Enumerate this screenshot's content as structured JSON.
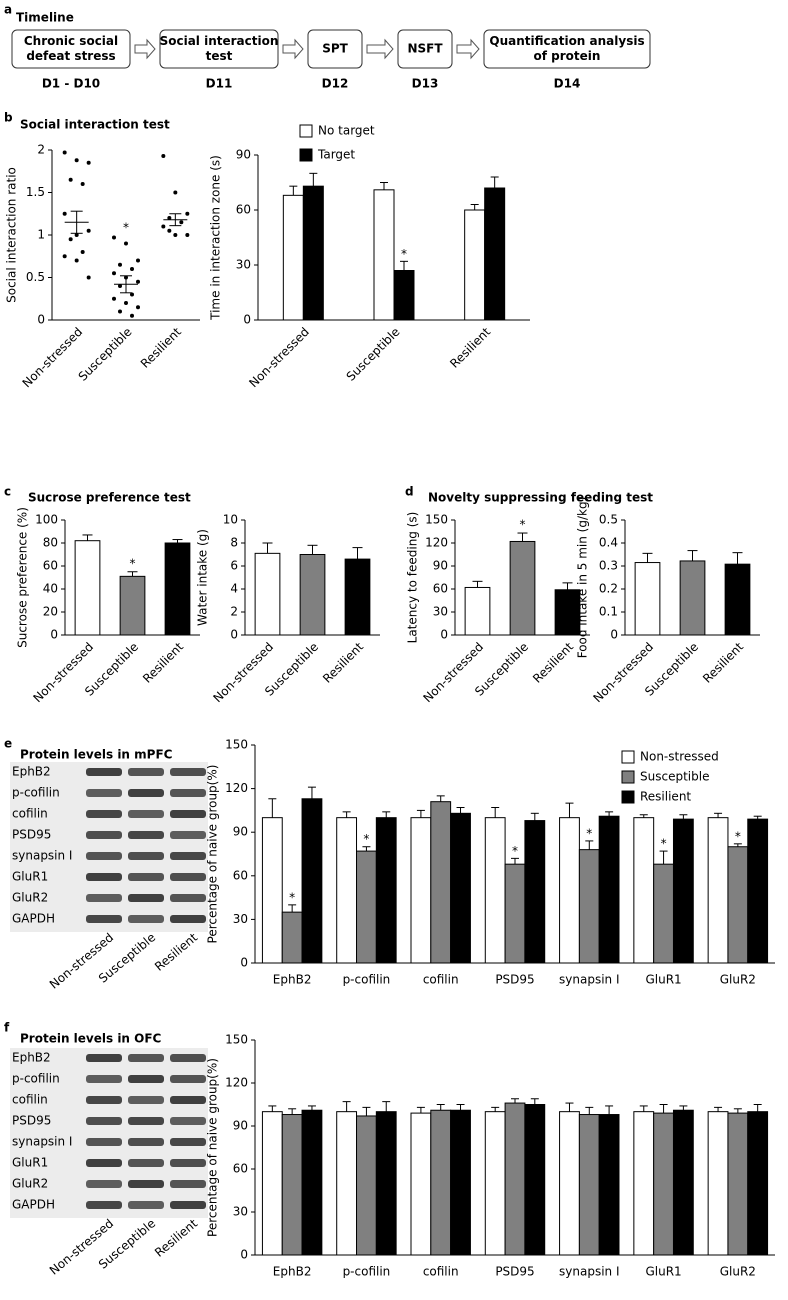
{
  "timeline": {
    "panel": "a",
    "title": "Timeline",
    "steps": [
      {
        "label_lines": [
          "Chronic social",
          "defeat stress"
        ],
        "day": "D1 - D10"
      },
      {
        "label_lines": [
          "Social interaction",
          "test"
        ],
        "day": "D11"
      },
      {
        "label_lines": [
          "SPT"
        ],
        "day": "D12"
      },
      {
        "label_lines": [
          "NSFT"
        ],
        "day": "D13"
      },
      {
        "label_lines": [
          "Quantification analysis",
          "of protein"
        ],
        "day": "D14"
      }
    ]
  },
  "blots": [
    {
      "panel": "e",
      "title": "Protein levels in mPFC",
      "proteins": [
        "EphB2",
        "p-cofilin",
        "cofilin",
        "PSD95",
        "synapsin I",
        "GluR1",
        "GluR2",
        "GAPDH"
      ],
      "groups": [
        "Non-stressed",
        "Susceptible",
        "Resilient"
      ]
    },
    {
      "panel": "f",
      "title": "Protein levels in OFC",
      "proteins": [
        "EphB2",
        "p-cofilin",
        "cofilin",
        "PSD95",
        "synapsin I",
        "GluR1",
        "GluR2",
        "GAPDH"
      ],
      "groups": [
        "Non-stressed",
        "Susceptible",
        "Resilient"
      ]
    }
  ],
  "chart_data": [
    {
      "type": "dot",
      "panel": "b",
      "title": "Social interaction test",
      "ylabel": "Social interaction ratio",
      "categories": [
        "Non-stressed",
        "Susceptible",
        "Resilient"
      ],
      "points": [
        [
          1.97,
          1.88,
          1.85,
          1.65,
          1.6,
          1.25,
          1.0,
          1.05,
          0.95,
          0.8,
          0.75,
          0.7,
          0.5
        ],
        [
          0.97,
          0.9,
          0.7,
          0.65,
          0.6,
          0.55,
          0.5,
          0.45,
          0.4,
          0.3,
          0.25,
          0.2,
          0.15,
          0.1,
          0.05
        ],
        [
          1.93,
          1.5,
          1.25,
          1.2,
          1.15,
          1.1,
          1.0,
          1.0,
          1.05
        ]
      ],
      "means": [
        1.15,
        0.42,
        1.18
      ],
      "errors": [
        0.13,
        0.1,
        0.07
      ],
      "annotations": [
        null,
        "*",
        null
      ],
      "ylim": [
        0,
        2
      ],
      "yticks": [
        0,
        0.5,
        1,
        1.5,
        2
      ]
    },
    {
      "type": "grouped_bar",
      "ylabel": "Time in interaction zone (s)",
      "categories": [
        "Non-stressed",
        "Susceptible",
        "Resilient"
      ],
      "series": [
        {
          "name": "No target",
          "color": "#ffffff",
          "values": [
            68,
            71,
            60
          ],
          "errors": [
            5,
            4,
            3
          ]
        },
        {
          "name": "Target",
          "color": "#000000",
          "values": [
            73,
            27,
            72
          ],
          "errors": [
            7,
            5,
            6
          ],
          "annotations": [
            null,
            "*",
            null
          ]
        }
      ],
      "ylim": [
        0,
        90
      ],
      "yticks": [
        0,
        30,
        60,
        90
      ]
    },
    {
      "type": "bar",
      "panel": "c",
      "title": "Sucrose preference test",
      "ylabel": "Sucrose preference (%)",
      "categories": [
        "Non-stressed",
        "Susceptible",
        "Resilient"
      ],
      "values": [
        82,
        51,
        80
      ],
      "errors": [
        5,
        4,
        3
      ],
      "colors": [
        "#ffffff",
        "#808080",
        "#000000"
      ],
      "annotations": [
        null,
        "*",
        null
      ],
      "ylim": [
        0,
        100
      ],
      "yticks": [
        0,
        20,
        40,
        60,
        80,
        100
      ]
    },
    {
      "type": "bar",
      "ylabel": "Water intake (g)",
      "categories": [
        "Non-stressed",
        "Susceptible",
        "Resilient"
      ],
      "values": [
        7.1,
        7.0,
        6.6
      ],
      "errors": [
        0.9,
        0.8,
        1.0
      ],
      "colors": [
        "#ffffff",
        "#808080",
        "#000000"
      ],
      "ylim": [
        0,
        10
      ],
      "yticks": [
        0,
        2,
        4,
        6,
        8,
        10
      ]
    },
    {
      "type": "bar",
      "panel": "d",
      "title": "Novelty suppressing feeding test",
      "ylabel": "Latency to feeding (s)",
      "categories": [
        "Non-stressed",
        "Susceptible",
        "Resilient"
      ],
      "values": [
        62,
        122,
        59
      ],
      "errors": [
        8,
        11,
        9
      ],
      "colors": [
        "#ffffff",
        "#808080",
        "#000000"
      ],
      "annotations": [
        null,
        "*",
        null
      ],
      "ylim": [
        0,
        150
      ],
      "yticks": [
        0,
        30,
        60,
        90,
        120,
        150
      ]
    },
    {
      "type": "bar",
      "ylabel": "Food intake in 5 min (g/kg)",
      "categories": [
        "Non-stressed",
        "Susceptible",
        "Resilient"
      ],
      "values": [
        0.315,
        0.322,
        0.308
      ],
      "errors": [
        0.04,
        0.045,
        0.05
      ],
      "colors": [
        "#ffffff",
        "#808080",
        "#000000"
      ],
      "ylim": [
        0,
        0.5
      ],
      "yticks": [
        0,
        0.1,
        0.2,
        0.3,
        0.4,
        0.5
      ]
    },
    {
      "type": "grouped_bar",
      "ylabel": "Percentage of naive group(%)",
      "categories": [
        "EphB2",
        "p-cofilin",
        "cofilin",
        "PSD95",
        "synapsin I",
        "GluR1",
        "GluR2"
      ],
      "series": [
        {
          "name": "Non-stressed",
          "color": "#ffffff",
          "values": [
            100,
            100,
            100,
            100,
            100,
            100,
            100
          ],
          "errors": [
            13,
            4,
            5,
            7,
            10,
            2,
            3
          ]
        },
        {
          "name": "Susceptible",
          "color": "#808080",
          "values": [
            35,
            77,
            111,
            68,
            78,
            68,
            80
          ],
          "errors": [
            5,
            3,
            4,
            4,
            6,
            9,
            2
          ],
          "annotations": [
            "*",
            "*",
            null,
            "*",
            "*",
            "*",
            "*"
          ]
        },
        {
          "name": "Resilient",
          "color": "#000000",
          "values": [
            113,
            100,
            103,
            98,
            101,
            99,
            99
          ],
          "errors": [
            8,
            4,
            4,
            5,
            3,
            3,
            2
          ]
        }
      ],
      "ylim": [
        0,
        150
      ],
      "yticks": [
        0,
        30,
        60,
        90,
        120,
        150
      ]
    },
    {
      "type": "grouped_bar",
      "ylabel": "Percentage of naive group(%)",
      "categories": [
        "EphB2",
        "p-cofilin",
        "cofilin",
        "PSD95",
        "synapsin I",
        "GluR1",
        "GluR2"
      ],
      "series": [
        {
          "color": "#ffffff",
          "values": [
            100,
            100,
            99,
            100,
            100,
            100,
            100
          ],
          "errors": [
            4,
            7,
            4,
            3,
            6,
            4,
            3
          ]
        },
        {
          "color": "#808080",
          "values": [
            98,
            97,
            101,
            106,
            98,
            99,
            99
          ],
          "errors": [
            4,
            6,
            4,
            3,
            5,
            6,
            3
          ]
        },
        {
          "color": "#000000",
          "values": [
            101,
            100,
            101,
            105,
            98,
            101,
            100
          ],
          "errors": [
            3,
            7,
            4,
            4,
            6,
            3,
            5
          ]
        }
      ],
      "ylim": [
        0,
        150
      ],
      "yticks": [
        0,
        30,
        60,
        90,
        120,
        150
      ]
    }
  ]
}
